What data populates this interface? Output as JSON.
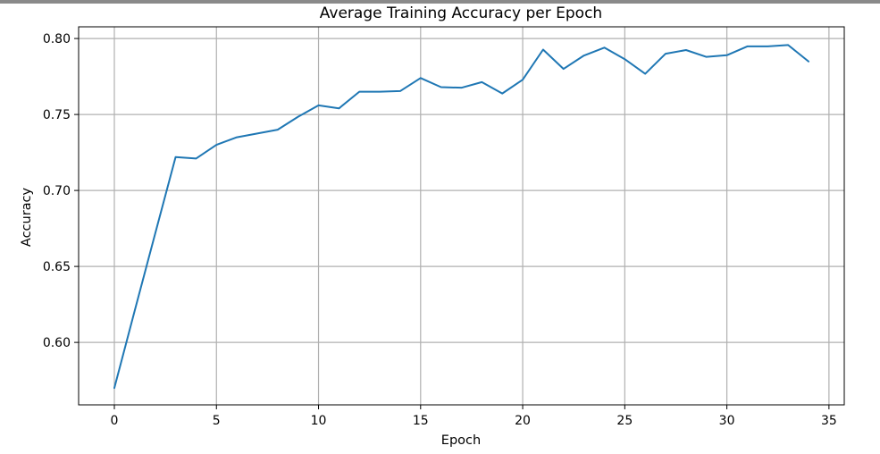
{
  "chart_data": {
    "type": "line",
    "title": "Average Training Accuracy per Epoch",
    "xlabel": "Epoch",
    "ylabel": "Accuracy",
    "xlim": [
      -1.75,
      35.75
    ],
    "ylim": [
      0.5589,
      0.8077
    ],
    "xticks": [
      0,
      5,
      10,
      15,
      20,
      25,
      30,
      35
    ],
    "xtick_labels": [
      "0",
      "5",
      "10",
      "15",
      "20",
      "25",
      "30",
      "35"
    ],
    "yticks": [
      0.6,
      0.65,
      0.7,
      0.75,
      0.8
    ],
    "ytick_labels": [
      "0.60",
      "0.65",
      "0.70",
      "0.75",
      "0.80"
    ],
    "grid": true,
    "line_color": "#1f77b4",
    "series": [
      {
        "x": [
          0,
          1,
          2,
          3,
          4,
          5,
          6,
          7,
          8,
          9,
          10,
          11,
          12,
          13,
          14,
          15,
          16,
          17,
          18,
          19,
          20,
          21,
          22,
          23,
          24,
          25,
          26,
          27,
          28,
          29,
          30,
          31,
          32,
          33,
          34
        ],
        "values": [
          0.57,
          0.621,
          0.6716,
          0.722,
          0.721,
          0.73,
          0.735,
          0.7375,
          0.74,
          0.7485,
          0.756,
          0.754,
          0.765,
          0.765,
          0.7654,
          0.774,
          0.768,
          0.7676,
          0.7713,
          0.7638,
          0.7729,
          0.7927,
          0.78,
          0.7888,
          0.794,
          0.7864,
          0.7768,
          0.79,
          0.7924,
          0.7879,
          0.789,
          0.7948,
          0.7948,
          0.7957,
          0.7849
        ]
      }
    ]
  }
}
